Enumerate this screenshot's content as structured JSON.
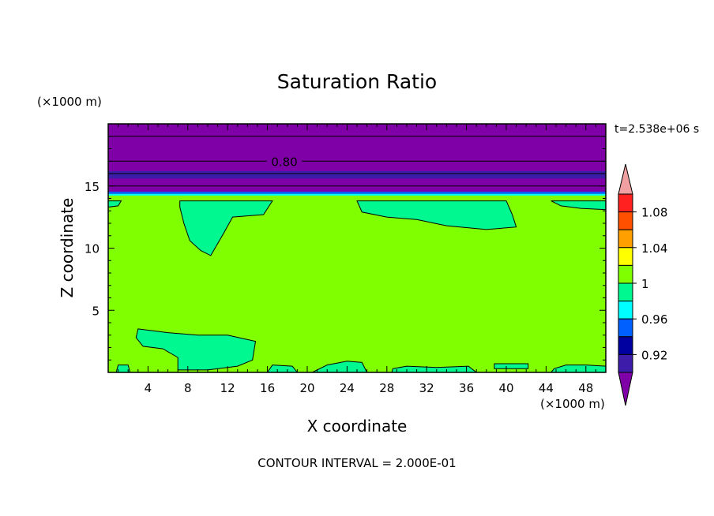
{
  "chart_data": {
    "type": "heatmap",
    "title": "Saturation Ratio",
    "xlabel": "X coordinate",
    "ylabel": "Z coordinate",
    "x_unit": "(×1000 m)",
    "y_unit": "(×1000 m)",
    "time_label": "t=2.538e+06 s",
    "footer": "CONTOUR INTERVAL = 2.000E-01",
    "xlim": [
      0,
      50
    ],
    "ylim": [
      0,
      20
    ],
    "xticks": [
      4,
      8,
      12,
      16,
      20,
      24,
      28,
      32,
      36,
      40,
      44,
      48
    ],
    "yticks": [
      5,
      10,
      15
    ],
    "contour_label": "0.80",
    "contour_label_x": 17.7,
    "contour_label_y": 17,
    "colorbar": {
      "levels": [
        0.92,
        0.94,
        0.96,
        0.98,
        1.0,
        1.02,
        1.04,
        1.06,
        1.08,
        1.1
      ],
      "tick_labels": [
        "1.08",
        "1.04",
        "1",
        "0.96",
        "0.92"
      ],
      "colors": [
        "#8000a8",
        "#3c1ca8",
        "#0000a0",
        "#0060ff",
        "#00ffff",
        "#00f890",
        "#80ff00",
        "#ffff00",
        "#ffa000",
        "#ff5000",
        "#ff2020",
        "#f0a0a0"
      ]
    },
    "background_value_class": "1 to 1.02",
    "upper_layer": {
      "from_z": 14.5,
      "to_z": 20,
      "value": "below 0.92"
    },
    "pockets_value_class": "0.98 to 1",
    "pockets": [
      {
        "name": "upper-left",
        "points": [
          [
            7.2,
            13.8
          ],
          [
            16.5,
            13.8
          ],
          [
            15.6,
            12.7
          ],
          [
            12.5,
            12.5
          ],
          [
            11.6,
            11.2
          ],
          [
            10.3,
            9.4
          ],
          [
            9.3,
            9.8
          ],
          [
            8.2,
            10.6
          ],
          [
            7.6,
            12.0
          ],
          [
            7.2,
            13.3
          ]
        ]
      },
      {
        "name": "upper-middle",
        "points": [
          [
            25.0,
            13.8
          ],
          [
            40.0,
            13.8
          ],
          [
            40.6,
            12.7
          ],
          [
            41.0,
            11.7
          ],
          [
            38.0,
            11.5
          ],
          [
            34.0,
            11.8
          ],
          [
            31.0,
            12.3
          ],
          [
            28.0,
            12.5
          ],
          [
            25.5,
            12.9
          ]
        ]
      },
      {
        "name": "upper-right",
        "points": [
          [
            44.5,
            13.8
          ],
          [
            50.0,
            13.8
          ],
          [
            50.0,
            13.1
          ],
          [
            47.5,
            13.2
          ],
          [
            45.5,
            13.4
          ]
        ]
      },
      {
        "name": "upper-left-edge",
        "points": [
          [
            0.0,
            13.8
          ],
          [
            1.3,
            13.8
          ],
          [
            1.0,
            13.4
          ],
          [
            0.0,
            13.3
          ]
        ]
      },
      {
        "name": "lower-left",
        "points": [
          [
            3.0,
            3.5
          ],
          [
            6.0,
            3.2
          ],
          [
            9.0,
            3.0
          ],
          [
            12.0,
            3.0
          ],
          [
            14.8,
            2.5
          ],
          [
            14.5,
            1.0
          ],
          [
            13.0,
            0.5
          ],
          [
            10.0,
            0.2
          ],
          [
            7.0,
            0.2
          ],
          [
            7.0,
            1.2
          ],
          [
            5.5,
            1.9
          ],
          [
            3.5,
            2.1
          ],
          [
            2.8,
            2.8
          ]
        ]
      },
      {
        "name": "bottom-28",
        "points": [
          [
            28.5,
            0
          ],
          [
            37.0,
            0
          ],
          [
            36.2,
            0.5
          ],
          [
            33.0,
            0.4
          ],
          [
            30.0,
            0.5
          ],
          [
            28.6,
            0.3
          ]
        ]
      },
      {
        "name": "bottom-39",
        "points": [
          [
            38.8,
            0.3
          ],
          [
            42.2,
            0.3
          ],
          [
            42.2,
            0.7
          ],
          [
            38.8,
            0.7
          ]
        ]
      },
      {
        "name": "bottom-44",
        "points": [
          [
            44.5,
            0
          ],
          [
            50.0,
            0
          ],
          [
            50.0,
            0.5
          ],
          [
            48.0,
            0.6
          ],
          [
            46.0,
            0.6
          ],
          [
            44.8,
            0.3
          ]
        ]
      },
      {
        "name": "bottom-left",
        "points": [
          [
            0.8,
            0
          ],
          [
            2.2,
            0
          ],
          [
            2.0,
            0.6
          ],
          [
            1.0,
            0.6
          ]
        ]
      },
      {
        "name": "bottom-22",
        "points": [
          [
            20.5,
            0
          ],
          [
            26.0,
            0
          ],
          [
            25.5,
            0.8
          ],
          [
            24.0,
            0.9
          ],
          [
            22.0,
            0.6
          ]
        ]
      },
      {
        "name": "bottom-16",
        "points": [
          [
            16.0,
            0
          ],
          [
            19.0,
            0
          ],
          [
            18.5,
            0.5
          ],
          [
            16.5,
            0.6
          ]
        ]
      }
    ]
  }
}
